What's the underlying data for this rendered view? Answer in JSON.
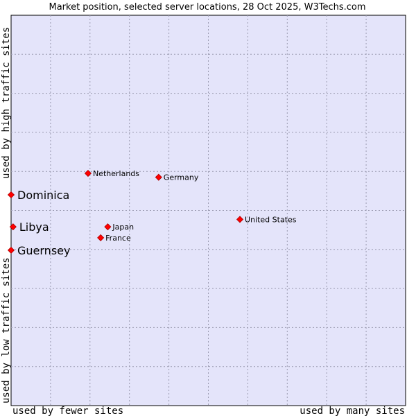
{
  "chart_data": {
    "type": "scatter",
    "title": "Market position, selected server locations, 28 Oct 2025, W3Techs.com",
    "xlabel_low": "used by fewer sites",
    "xlabel_high": "used by many sites",
    "ylabel_low": "used by low traffic sites",
    "ylabel_high": "used by high traffic sites",
    "xlim": [
      0,
      10
    ],
    "ylim": [
      0,
      10
    ],
    "grid": true,
    "point_color": "#ff0000",
    "background_color": "#e4e4fa",
    "points": [
      {
        "name": "Netherlands",
        "x": 1.95,
        "y": 5.95,
        "highlight": false
      },
      {
        "name": "Germany",
        "x": 3.74,
        "y": 5.85,
        "highlight": false
      },
      {
        "name": "United States",
        "x": 5.8,
        "y": 4.77,
        "highlight": false
      },
      {
        "name": "Japan",
        "x": 2.45,
        "y": 4.58,
        "highlight": false
      },
      {
        "name": "France",
        "x": 2.27,
        "y": 4.3,
        "highlight": false
      },
      {
        "name": "Dominica",
        "x": 0.0,
        "y": 5.4,
        "highlight": true
      },
      {
        "name": "Libya",
        "x": 0.05,
        "y": 4.58,
        "highlight": true
      },
      {
        "name": "Guernsey",
        "x": 0.0,
        "y": 3.98,
        "highlight": true
      }
    ]
  }
}
